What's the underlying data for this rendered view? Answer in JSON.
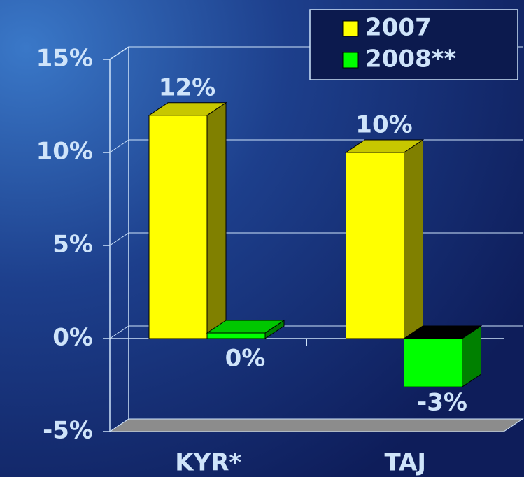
{
  "chart_data": {
    "type": "bar3d",
    "categories": [
      "KYR*",
      "TAJ"
    ],
    "series": [
      {
        "name": "2007",
        "color": "#ffff00",
        "values": [
          12,
          10
        ],
        "value_labels": [
          "12%",
          "10%"
        ]
      },
      {
        "name": "2008**",
        "color": "#00ff00",
        "values": [
          0.3,
          -2.6
        ],
        "value_labels": [
          "0%",
          "-3%"
        ]
      }
    ],
    "ylim": [
      -5,
      15
    ],
    "yticks": [
      {
        "value": -5,
        "label": "-5%"
      },
      {
        "value": 0,
        "label": "0%"
      },
      {
        "value": 5,
        "label": "5%"
      },
      {
        "value": 10,
        "label": "10%"
      },
      {
        "value": 15,
        "label": "15%"
      }
    ],
    "grid": true,
    "legend": "top-right"
  }
}
